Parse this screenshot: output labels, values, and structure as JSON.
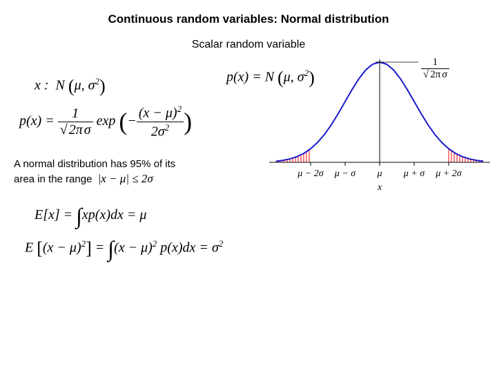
{
  "title": "Continuous random variables: Normal distribution",
  "subtitle": "Scalar random variable",
  "body_text": "A normal distribution has 95% of its area in the range",
  "body_inline_math": "|x − μ| ≤ 2σ",
  "equations": {
    "eq1_lhs": "x :",
    "eq1_rhs_N": "N",
    "eq1_args": "μ, σ",
    "eq2_lhs": "p(x) =",
    "eq2_exp": "exp",
    "eq2_num": "(x − μ)",
    "eq2_den": "2σ",
    "eq3_lhs": "p(x) = N",
    "eq5_lhs": "E[x] =",
    "eq5_int": "xp(x)dx = μ",
    "eq6_lhs": "E",
    "eq6_arg": "(x − μ)",
    "eq6_int": "(x − μ)",
    "eq6_rest": " p(x)dx = σ"
  },
  "chart": {
    "type": "line",
    "curve_color": "#1818cc",
    "tail_fill_color": "#ff0000",
    "axis_color": "#000000",
    "background_color": "#ffffff",
    "line_width": 2,
    "x_ticks": [
      "μ − 2σ",
      "μ − σ",
      "μ",
      "μ + σ",
      "μ + 2σ"
    ],
    "x_label": "x",
    "peak_label_num": "1",
    "peak_label_den_sqrt": "2π",
    "peak_label_den_sigma": "σ",
    "gaussian_points": [
      [
        -3.0,
        0.0044
      ],
      [
        -2.8,
        0.0079
      ],
      [
        -2.6,
        0.0136
      ],
      [
        -2.4,
        0.0224
      ],
      [
        -2.2,
        0.0355
      ],
      [
        -2.0,
        0.054
      ],
      [
        -1.8,
        0.079
      ],
      [
        -1.6,
        0.1109
      ],
      [
        -1.4,
        0.1497
      ],
      [
        -1.2,
        0.1942
      ],
      [
        -1.0,
        0.242
      ],
      [
        -0.8,
        0.2897
      ],
      [
        -0.6,
        0.3332
      ],
      [
        -0.4,
        0.3683
      ],
      [
        -0.2,
        0.391
      ],
      [
        0.0,
        0.3989
      ],
      [
        0.2,
        0.391
      ],
      [
        0.4,
        0.3683
      ],
      [
        0.6,
        0.3332
      ],
      [
        0.8,
        0.2897
      ],
      [
        1.0,
        0.242
      ],
      [
        1.2,
        0.1942
      ],
      [
        1.4,
        0.1497
      ],
      [
        1.6,
        0.1109
      ],
      [
        1.8,
        0.079
      ],
      [
        2.0,
        0.054
      ],
      [
        2.2,
        0.0355
      ],
      [
        2.4,
        0.0224
      ],
      [
        2.6,
        0.0136
      ],
      [
        2.8,
        0.0079
      ],
      [
        3.0,
        0.0044
      ]
    ],
    "tail_cutoff": 2.0
  }
}
